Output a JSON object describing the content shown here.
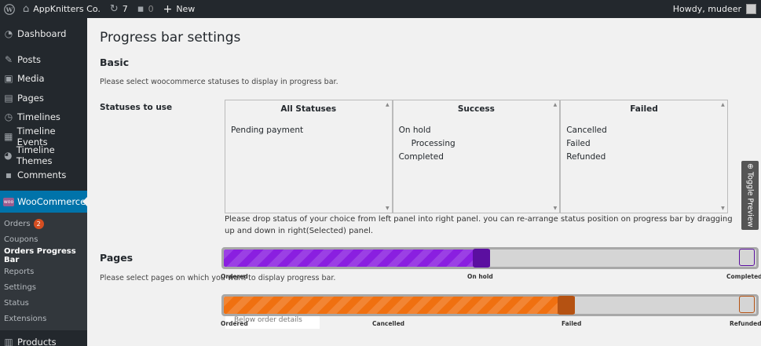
{
  "adminbar": {
    "site_name": "AppKnitters Co.",
    "updates_count": "7",
    "comments_count": "0",
    "new_label": "New",
    "greeting": "Howdy, mudeer"
  },
  "sidebar": {
    "items": [
      {
        "label": "Dashboard",
        "icon": "dashboard-icon"
      },
      {
        "label": "Posts",
        "icon": "pin-icon"
      },
      {
        "label": "Media",
        "icon": "media-icon"
      },
      {
        "label": "Pages",
        "icon": "pages-icon"
      },
      {
        "label": "Timelines",
        "icon": "clock-icon"
      },
      {
        "label": "Timeline Events",
        "icon": "calendar-icon"
      },
      {
        "label": "Timeline Themes",
        "icon": "palette-icon"
      },
      {
        "label": "Comments",
        "icon": "comment-icon"
      }
    ],
    "woocommerce": {
      "label": "WooCommerce",
      "submenu": [
        {
          "label": "Orders",
          "badge": "2"
        },
        {
          "label": "Coupons"
        },
        {
          "label": "Orders Progress Bar"
        },
        {
          "label": "Reports"
        },
        {
          "label": "Settings"
        },
        {
          "label": "Status"
        },
        {
          "label": "Extensions"
        }
      ]
    },
    "products_label": "Products"
  },
  "main": {
    "title": "Progress bar settings",
    "basic_heading": "Basic",
    "basic_desc": "Please select woocommerce statuses to display in progress bar.",
    "statuses_label": "Statuses to use",
    "panels": [
      {
        "title": "All Statuses",
        "items": [
          {
            "label": "Pending payment"
          }
        ]
      },
      {
        "title": "Success",
        "items": [
          {
            "label": "On hold"
          },
          {
            "label": "Processing",
            "indent": true
          },
          {
            "label": "Completed"
          }
        ]
      },
      {
        "title": "Failed",
        "items": [
          {
            "label": "Cancelled"
          },
          {
            "label": "Failed"
          },
          {
            "label": "Refunded"
          }
        ]
      }
    ],
    "drop_note": "Please drop status of your choice from left panel into right panel. you can re-arrange status position on progress bar by dragging up and down in right(Selected) panel.",
    "pages_heading": "Pages",
    "pages_desc": "Please select pages on which you want to display progress bar.",
    "toggle_preview": "⊕ Toggle Preview",
    "popup_text": "Below order details"
  },
  "preview": {
    "success_bar": {
      "progress": 0.5,
      "color": "#8a1fe0",
      "marker_color": "#5b0fa0",
      "labels": [
        "Ordered",
        "On hold",
        "Completed"
      ]
    },
    "failed_bar": {
      "progress": 0.66,
      "color": "#f07010",
      "marker_color": "#b55212",
      "labels": [
        "Ordered",
        "Cancelled",
        "Failed",
        "Refunded"
      ]
    }
  }
}
